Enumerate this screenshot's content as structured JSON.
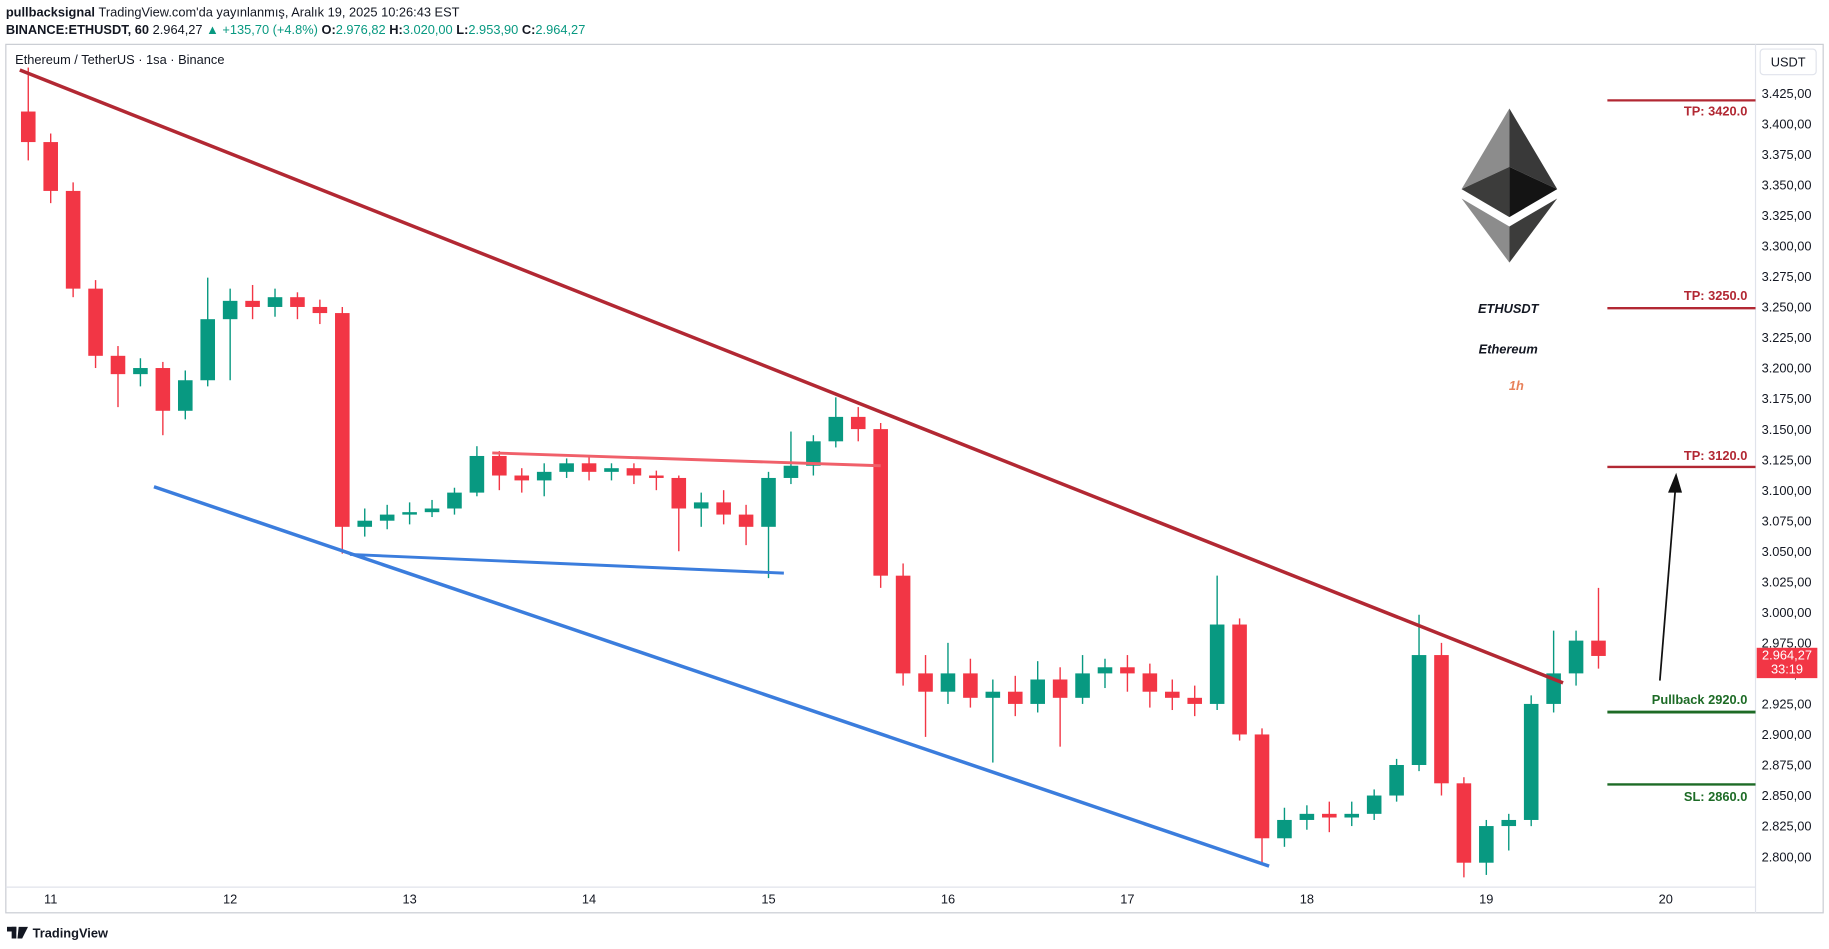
{
  "header": {
    "author": "pullbacksignal",
    "published": "TradingView.com'da yayınlanmış, Aralık 19, 2025 10:26:43 EST",
    "symbol": "BINANCE:ETHUSDT, 60",
    "last": "2.964,27",
    "change": "▲ +135,70 (+4.8%)",
    "ohlc": [
      {
        "label": "O:",
        "value": "2.976,82"
      },
      {
        "label": "H:",
        "value": "3.020,00"
      },
      {
        "label": "L:",
        "value": "2.953,90"
      },
      {
        "label": "C:",
        "value": "2.964,27"
      }
    ]
  },
  "chart_data": {
    "type": "candlestick",
    "title": "Ethereum / TetherUS · 1sa · Binance",
    "currency": "USDT",
    "up_color": "#089981",
    "down_color": "#f23645",
    "grid": false,
    "xlim": [
      10.75,
      20.5
    ],
    "xticks": [
      11,
      12,
      13,
      14,
      15,
      16,
      17,
      18,
      19,
      20
    ],
    "ylim": [
      2775,
      3465
    ],
    "yticks": [
      {
        "value": 2800,
        "label": "2.800,00"
      },
      {
        "value": 2825,
        "label": "2.825,00"
      },
      {
        "value": 2850,
        "label": "2.850,00"
      },
      {
        "value": 2875,
        "label": "2.875,00"
      },
      {
        "value": 2900,
        "label": "2.900,00"
      },
      {
        "value": 2925,
        "label": "2.925,00"
      },
      {
        "value": 2950,
        "label": "2.950,00"
      },
      {
        "value": 2975,
        "label": "2.975,00"
      },
      {
        "value": 3000,
        "label": "3.000,00"
      },
      {
        "value": 3025,
        "label": "3.025,00"
      },
      {
        "value": 3050,
        "label": "3.050,00"
      },
      {
        "value": 3075,
        "label": "3.075,00"
      },
      {
        "value": 3100,
        "label": "3.100,00"
      },
      {
        "value": 3125,
        "label": "3.125,00"
      },
      {
        "value": 3150,
        "label": "3.150,00"
      },
      {
        "value": 3175,
        "label": "3.175,00"
      },
      {
        "value": 3200,
        "label": "3.200,00"
      },
      {
        "value": 3225,
        "label": "3.225,00"
      },
      {
        "value": 3250,
        "label": "3.250,00"
      },
      {
        "value": 3275,
        "label": "3.275,00"
      },
      {
        "value": 3300,
        "label": "3.300,00"
      },
      {
        "value": 3325,
        "label": "3.325,00"
      },
      {
        "value": 3350,
        "label": "3.350,00"
      },
      {
        "value": 3375,
        "label": "3.375,00"
      },
      {
        "value": 3400,
        "label": "3.400,00"
      },
      {
        "value": 3425,
        "label": "3.425,00"
      }
    ],
    "price_label": {
      "value": 2964.27,
      "label": "2.964,27"
    },
    "countdown": "33:19",
    "candles": [
      [
        10.875,
        3410,
        3446,
        3370,
        3385
      ],
      [
        11,
        3385,
        3392,
        3335,
        3345
      ],
      [
        11.125,
        3345,
        3352,
        3258,
        3265
      ],
      [
        11.25,
        3265,
        3272,
        3200,
        3210
      ],
      [
        11.375,
        3210,
        3218,
        3168,
        3195
      ],
      [
        11.5,
        3195,
        3208,
        3185,
        3200
      ],
      [
        11.625,
        3200,
        3205,
        3145,
        3165
      ],
      [
        11.75,
        3165,
        3198,
        3158,
        3190
      ],
      [
        11.875,
        3190,
        3274,
        3185,
        3240
      ],
      [
        12,
        3240,
        3265,
        3190,
        3255
      ],
      [
        12.125,
        3255,
        3268,
        3240,
        3250
      ],
      [
        12.25,
        3250,
        3265,
        3242,
        3258
      ],
      [
        12.375,
        3258,
        3262,
        3240,
        3250
      ],
      [
        12.5,
        3250,
        3256,
        3236,
        3245
      ],
      [
        12.625,
        3245,
        3250,
        3048,
        3070
      ],
      [
        12.75,
        3070,
        3085,
        3062,
        3075
      ],
      [
        12.875,
        3075,
        3088,
        3068,
        3080
      ],
      [
        13,
        3080,
        3090,
        3072,
        3082
      ],
      [
        13.125,
        3082,
        3092,
        3078,
        3085
      ],
      [
        13.25,
        3085,
        3102,
        3080,
        3098
      ],
      [
        13.375,
        3098,
        3136,
        3095,
        3128
      ],
      [
        13.5,
        3128,
        3132,
        3100,
        3112
      ],
      [
        13.625,
        3112,
        3118,
        3098,
        3108
      ],
      [
        13.75,
        3108,
        3122,
        3095,
        3115
      ],
      [
        13.875,
        3115,
        3126,
        3110,
        3122
      ],
      [
        14,
        3122,
        3128,
        3108,
        3115
      ],
      [
        14.125,
        3115,
        3122,
        3108,
        3118
      ],
      [
        14.25,
        3118,
        3122,
        3105,
        3112
      ],
      [
        14.375,
        3112,
        3116,
        3100,
        3110
      ],
      [
        14.5,
        3110,
        3112,
        3050,
        3085
      ],
      [
        14.625,
        3085,
        3098,
        3070,
        3090
      ],
      [
        14.75,
        3090,
        3100,
        3072,
        3080
      ],
      [
        14.875,
        3080,
        3088,
        3055,
        3070
      ],
      [
        15,
        3070,
        3115,
        3028,
        3110
      ],
      [
        15.125,
        3110,
        3148,
        3105,
        3120
      ],
      [
        15.25,
        3120,
        3145,
        3112,
        3140
      ],
      [
        15.375,
        3140,
        3176,
        3135,
        3160
      ],
      [
        15.5,
        3160,
        3168,
        3140,
        3150
      ],
      [
        15.625,
        3150,
        3155,
        3020,
        3030
      ],
      [
        15.75,
        3030,
        3040,
        2940,
        2950
      ],
      [
        15.875,
        2950,
        2965,
        2898,
        2935
      ],
      [
        16,
        2935,
        2975,
        2925,
        2950
      ],
      [
        16.125,
        2950,
        2962,
        2922,
        2930
      ],
      [
        16.25,
        2930,
        2945,
        2877,
        2935
      ],
      [
        16.375,
        2935,
        2948,
        2915,
        2925
      ],
      [
        16.5,
        2925,
        2960,
        2918,
        2945
      ],
      [
        16.625,
        2945,
        2955,
        2890,
        2930
      ],
      [
        16.75,
        2930,
        2965,
        2925,
        2950
      ],
      [
        16.875,
        2950,
        2962,
        2938,
        2955
      ],
      [
        17,
        2955,
        2965,
        2935,
        2950
      ],
      [
        17.125,
        2950,
        2958,
        2922,
        2935
      ],
      [
        17.25,
        2935,
        2945,
        2920,
        2930
      ],
      [
        17.375,
        2930,
        2940,
        2915,
        2925
      ],
      [
        17.5,
        2925,
        3030,
        2920,
        2990
      ],
      [
        17.625,
        2990,
        2995,
        2895,
        2900
      ],
      [
        17.75,
        2900,
        2905,
        2793,
        2815
      ],
      [
        17.875,
        2815,
        2840,
        2808,
        2830
      ],
      [
        18,
        2830,
        2842,
        2822,
        2835
      ],
      [
        18.125,
        2835,
        2845,
        2820,
        2832
      ],
      [
        18.25,
        2832,
        2845,
        2825,
        2835
      ],
      [
        18.375,
        2835,
        2855,
        2830,
        2850
      ],
      [
        18.5,
        2850,
        2880,
        2845,
        2875
      ],
      [
        18.625,
        2875,
        2998,
        2870,
        2965
      ],
      [
        18.75,
        2965,
        2975,
        2850,
        2860
      ],
      [
        18.875,
        2860,
        2865,
        2783,
        2795
      ],
      [
        19,
        2795,
        2830,
        2785,
        2825
      ],
      [
        19.125,
        2825,
        2835,
        2805,
        2830
      ],
      [
        19.25,
        2830,
        2932,
        2825,
        2925
      ],
      [
        19.375,
        2925,
        2985,
        2918,
        2950
      ],
      [
        19.5,
        2950,
        2985,
        2940,
        2976.82
      ],
      [
        19.625,
        2976.82,
        3020,
        2953.9,
        2964.27
      ]
    ],
    "annotations": {
      "tp1": "TP: 3420.0",
      "tp2": "TP: 3250.0",
      "tp3": "TP: 3120.0",
      "pullback": "Pullback 2920.0",
      "sl": "SL: 2860.0",
      "symbol": "ETHUSDT",
      "name": "Ethereum",
      "timeframe": "1h"
    }
  },
  "footer": {
    "brand": "TradingView"
  }
}
